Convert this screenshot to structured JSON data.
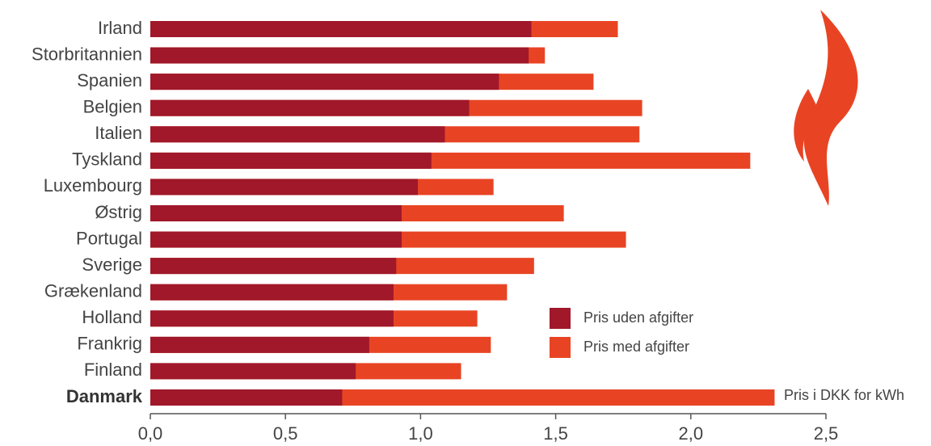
{
  "chart_data": {
    "type": "bar",
    "orientation": "horizontal",
    "overlay": true,
    "annotation": "Pris i DKK for kWh",
    "categories": [
      "Irland",
      "Storbritannien",
      "Spanien",
      "Belgien",
      "Italien",
      "Tyskland",
      "Luxembourg",
      "Østrig",
      "Portugal",
      "Sverige",
      "Grækenland",
      "Holland",
      "Frankrig",
      "Finland",
      "Danmark"
    ],
    "highlight": "Danmark",
    "series": [
      {
        "name": "Pris med afgifter",
        "color": "#e84424",
        "values": [
          1.73,
          1.46,
          1.64,
          1.82,
          1.81,
          2.22,
          1.27,
          1.53,
          1.76,
          1.42,
          1.32,
          1.21,
          1.26,
          1.15,
          2.31
        ]
      },
      {
        "name": "Pris uden afgifter",
        "color": "#a0182a",
        "values": [
          1.41,
          1.4,
          1.29,
          1.18,
          1.09,
          1.04,
          0.99,
          0.93,
          0.93,
          0.91,
          0.9,
          0.9,
          0.81,
          0.76,
          0.71
        ]
      }
    ],
    "xlim": [
      0,
      2.5
    ],
    "xticks": [
      {
        "value": 0,
        "label": "0,0"
      },
      {
        "value": 0.5,
        "label": "0,5"
      },
      {
        "value": 1,
        "label": "1,0"
      },
      {
        "value": 1.5,
        "label": "1,5"
      },
      {
        "value": 2,
        "label": "2,0"
      },
      {
        "value": 2.5,
        "label": "2,5"
      }
    ]
  }
}
